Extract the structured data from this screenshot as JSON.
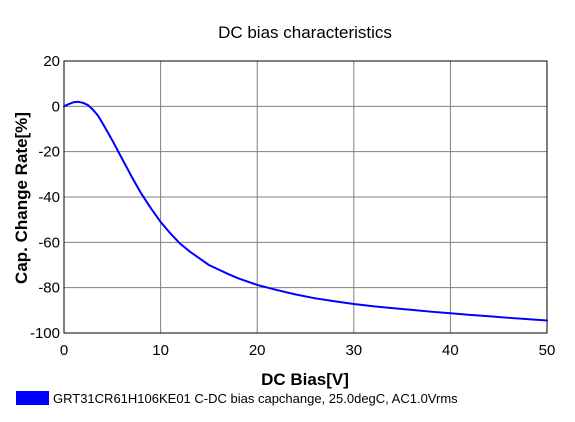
{
  "chart_data": {
    "type": "line",
    "title": "DC bias characteristics",
    "xlabel": "DC Bias[V]",
    "ylabel": "Cap. Change Rate[%]",
    "xlim": [
      0,
      50
    ],
    "ylim": [
      -100,
      20
    ],
    "xticks": [
      0,
      10,
      20,
      30,
      40,
      50
    ],
    "yticks": [
      -100,
      -80,
      -60,
      -40,
      -20,
      0,
      20
    ],
    "xtick_labels": [
      "0",
      "10",
      "20",
      "30",
      "40",
      "50"
    ],
    "ytick_labels": [
      "-100",
      "-80",
      "-60",
      "-40",
      "-20",
      "0",
      "20"
    ],
    "grid": true,
    "legend_position": "bottom-left",
    "series": [
      {
        "name": "GRT31CR61H106KE01 C-DC bias capchange, 25.0degC, AC1.0Vrms",
        "color": "#0000ff",
        "x": [
          0,
          0.5,
          1,
          1.5,
          2,
          2.5,
          3,
          3.5,
          4,
          5,
          6,
          7,
          8,
          9,
          10,
          11,
          12,
          13,
          14,
          15,
          16,
          17,
          18,
          19,
          20,
          22,
          24,
          26,
          28,
          30,
          32,
          34,
          36,
          38,
          40,
          42,
          44,
          46,
          48,
          50
        ],
        "y": [
          0,
          1,
          1.8,
          2,
          1.5,
          0.5,
          -1.5,
          -4,
          -7.5,
          -15,
          -23,
          -31,
          -38.5,
          -45,
          -51,
          -56,
          -60.5,
          -64,
          -67,
          -70,
          -72,
          -74,
          -75.8,
          -77.3,
          -78.8,
          -81,
          -83,
          -84.7,
          -86,
          -87.2,
          -88.2,
          -89,
          -89.8,
          -90.6,
          -91.3,
          -92,
          -92.6,
          -93.3,
          -93.9,
          -94.5
        ]
      }
    ]
  }
}
